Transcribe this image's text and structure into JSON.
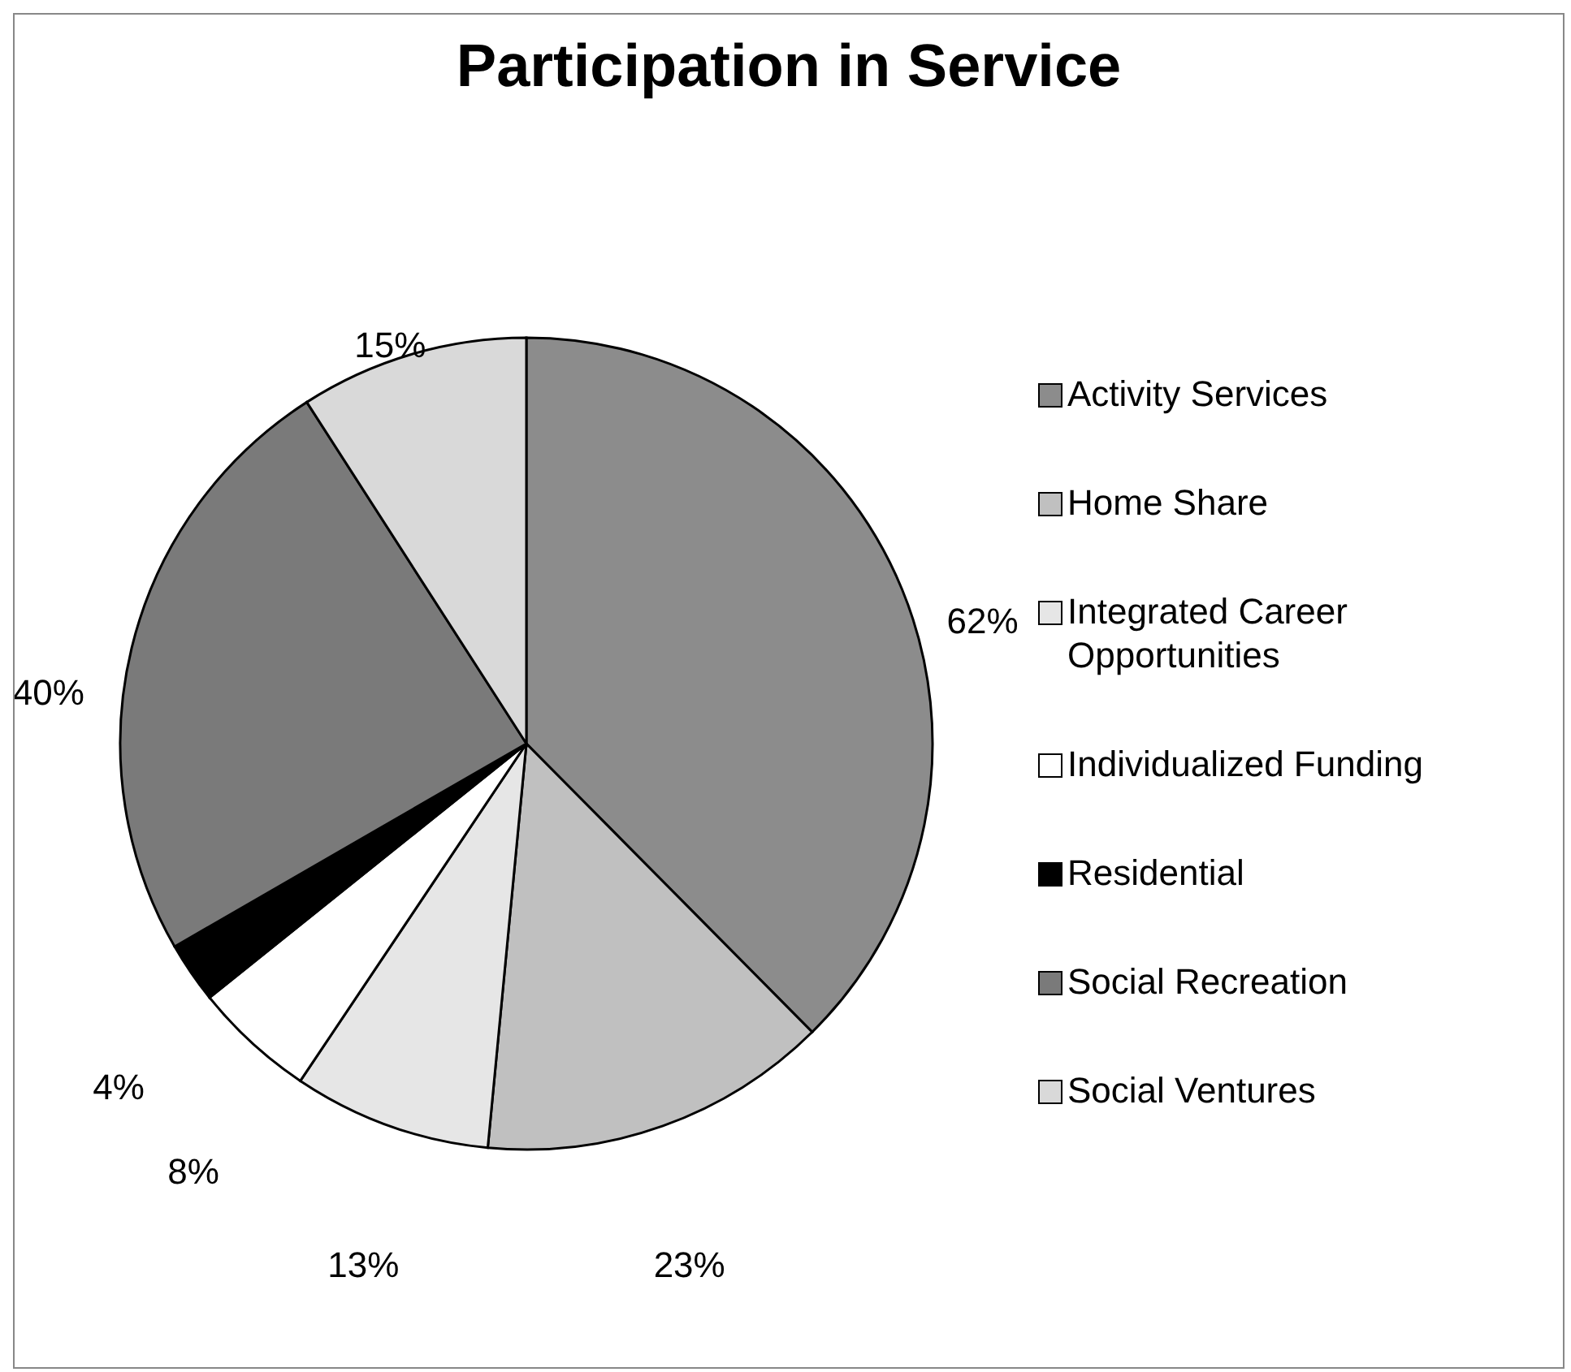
{
  "chart_data": {
    "type": "pie",
    "title": "Participation in Service",
    "categories": [
      "Activity Services",
      "Home Share",
      "Integrated Career Opportunities",
      "Individualized Funding",
      "Residential",
      "Social Recreation",
      "Social Ventures"
    ],
    "values": [
      62,
      23,
      13,
      8,
      4,
      40,
      15
    ],
    "value_labels": [
      "62%",
      "23%",
      "13%",
      "8%",
      "4%",
      "40%",
      "15%"
    ],
    "colors": [
      "#8c8c8c",
      "#c0c0c0",
      "#e6e6e6",
      "#ffffff",
      "#000000",
      "#7a7a7a",
      "#d9d9d9"
    ],
    "legend": "right"
  }
}
